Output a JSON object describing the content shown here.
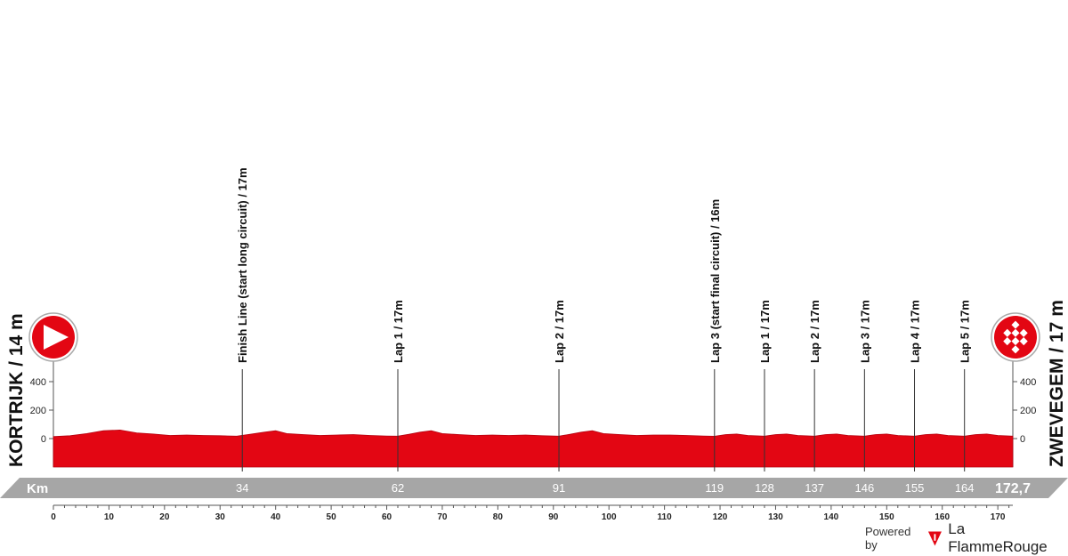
{
  "chart_data": {
    "type": "area",
    "title": "",
    "xlabel": "Km",
    "ylabel": "",
    "xlim": [
      0,
      172.7
    ],
    "ylim": [
      0,
      400
    ],
    "x_ticks": [
      0,
      10,
      20,
      30,
      40,
      50,
      60,
      70,
      80,
      90,
      100,
      110,
      120,
      130,
      140,
      150,
      160,
      170
    ],
    "y_ticks": [
      "400",
      "200",
      "0"
    ],
    "km_bar_labels": [
      "34",
      "62",
      "91",
      "119",
      "128",
      "137",
      "146",
      "155",
      "164"
    ],
    "total_distance": "172,7",
    "start": {
      "label": "KORTRIJK / 14 m",
      "km": 0,
      "icon": "start-arrow-icon"
    },
    "finish": {
      "label": "ZWEVEGEM / 17 m",
      "km": 172.7,
      "icon": "checkered-flag-icon"
    },
    "waypoints": [
      {
        "km": 34,
        "label": "Finish Line (start long circuit) / 17m"
      },
      {
        "km": 62,
        "label": "Lap 1 / 17m"
      },
      {
        "km": 91,
        "label": "Lap 2 / 17m"
      },
      {
        "km": 119,
        "label": "Lap 3 (start final circuit) / 16m"
      },
      {
        "km": 128,
        "label": "Lap 1 / 17m"
      },
      {
        "km": 137,
        "label": "Lap 2 / 17m"
      },
      {
        "km": 146,
        "label": "Lap 3 / 17m"
      },
      {
        "km": 155,
        "label": "Lap 4 / 17m"
      },
      {
        "km": 164,
        "label": "Lap 5 / 17m"
      }
    ],
    "series": [
      {
        "values": [
          [
            0,
            14
          ],
          [
            3,
            20
          ],
          [
            6,
            35
          ],
          [
            9,
            55
          ],
          [
            12,
            60
          ],
          [
            15,
            40
          ],
          [
            18,
            32
          ],
          [
            21,
            22
          ],
          [
            24,
            25
          ],
          [
            27,
            22
          ],
          [
            30,
            20
          ],
          [
            33,
            17
          ],
          [
            35,
            28
          ],
          [
            38,
            45
          ],
          [
            40,
            55
          ],
          [
            42,
            35
          ],
          [
            45,
            28
          ],
          [
            48,
            22
          ],
          [
            51,
            25
          ],
          [
            54,
            28
          ],
          [
            57,
            22
          ],
          [
            60,
            18
          ],
          [
            62,
            17
          ],
          [
            64,
            30
          ],
          [
            66,
            45
          ],
          [
            68,
            55
          ],
          [
            70,
            35
          ],
          [
            73,
            28
          ],
          [
            76,
            22
          ],
          [
            79,
            25
          ],
          [
            82,
            22
          ],
          [
            85,
            25
          ],
          [
            88,
            20
          ],
          [
            91,
            17
          ],
          [
            93,
            30
          ],
          [
            95,
            45
          ],
          [
            97,
            55
          ],
          [
            99,
            35
          ],
          [
            102,
            28
          ],
          [
            105,
            22
          ],
          [
            108,
            25
          ],
          [
            111,
            25
          ],
          [
            114,
            22
          ],
          [
            117,
            18
          ],
          [
            119,
            16
          ],
          [
            121,
            28
          ],
          [
            123,
            32
          ],
          [
            125,
            22
          ],
          [
            128,
            17
          ],
          [
            130,
            28
          ],
          [
            132,
            32
          ],
          [
            134,
            22
          ],
          [
            137,
            17
          ],
          [
            139,
            28
          ],
          [
            141,
            32
          ],
          [
            143,
            22
          ],
          [
            146,
            17
          ],
          [
            148,
            28
          ],
          [
            150,
            32
          ],
          [
            152,
            22
          ],
          [
            155,
            17
          ],
          [
            157,
            28
          ],
          [
            159,
            32
          ],
          [
            161,
            22
          ],
          [
            164,
            17
          ],
          [
            166,
            28
          ],
          [
            168,
            32
          ],
          [
            170,
            22
          ],
          [
            172.7,
            17
          ]
        ]
      }
    ],
    "colors": {
      "profile": "#e30613",
      "profile_dark": "#b5000e",
      "km_bar": "#a6a6a6"
    }
  },
  "footer": {
    "powered_by": "Powered by",
    "brand": "La FlammeRouge"
  }
}
